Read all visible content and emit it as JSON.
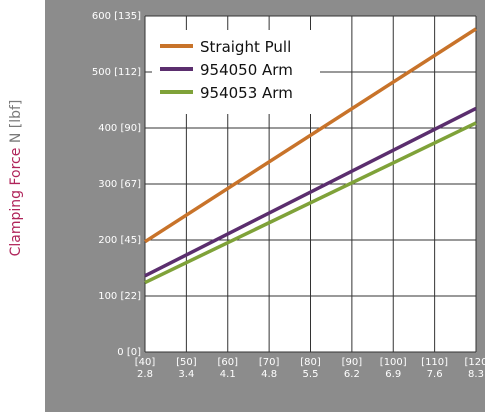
{
  "chart_data": {
    "type": "line",
    "ylabel": {
      "main": "Clamping Force",
      "unit": "N [lbf]"
    },
    "xlim": [
      2.8,
      8.3
    ],
    "ylim": [
      0,
      600
    ],
    "x_ticks": [
      {
        "top": "[40]",
        "bottom": "2.8"
      },
      {
        "top": "[50]",
        "bottom": "3.4"
      },
      {
        "top": "[60]",
        "bottom": "4.1"
      },
      {
        "top": "[70]",
        "bottom": "4.8"
      },
      {
        "top": "[80]",
        "bottom": "5.5"
      },
      {
        "top": "[90]",
        "bottom": "6.2"
      },
      {
        "top": "[100]",
        "bottom": "6.9"
      },
      {
        "top": "[110]",
        "bottom": "7.6"
      },
      {
        "top": "[120",
        "bottom": "8.3"
      }
    ],
    "y_ticks": [
      {
        "value": 0,
        "label": "0 [0]"
      },
      {
        "value": 100,
        "label": "100 [22]"
      },
      {
        "value": 200,
        "label": "200 [45]"
      },
      {
        "value": 300,
        "label": "300 [67]"
      },
      {
        "value": 400,
        "label": "400 [90]"
      },
      {
        "value": 500,
        "label": "500 [112]"
      },
      {
        "value": 600,
        "label": "600 [135]"
      }
    ],
    "series": [
      {
        "name": "Straight Pull",
        "color": "#c8732a",
        "x": [
          2.8,
          8.3
        ],
        "values": [
          197,
          577
        ]
      },
      {
        "name": "954050 Arm",
        "color": "#5b2e6e",
        "x": [
          2.8,
          8.3
        ],
        "values": [
          136,
          435
        ]
      },
      {
        "name": "954053 Arm",
        "color": "#7fa239",
        "x": [
          2.8,
          8.3
        ],
        "values": [
          124,
          409
        ]
      }
    ],
    "grid": true,
    "legend_position": "top-left"
  }
}
